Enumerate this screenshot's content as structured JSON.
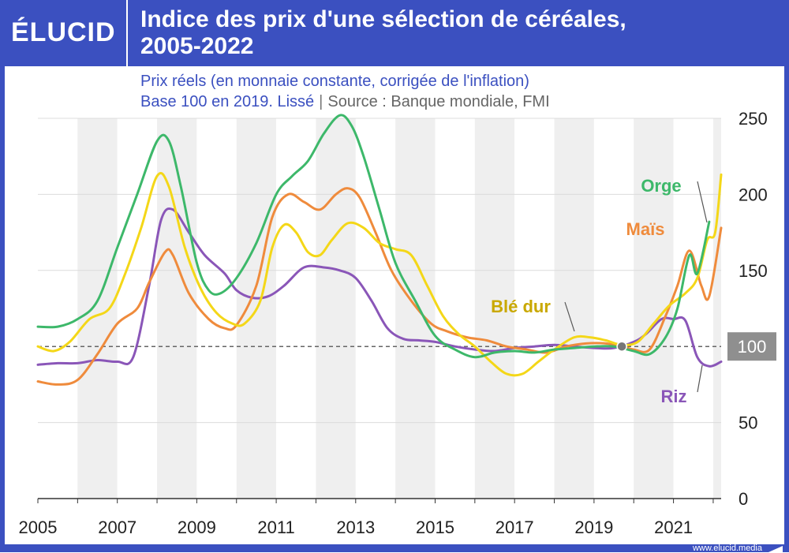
{
  "header": {
    "logo": "ÉLUCID",
    "title_line1": "Indice des prix d'une sélection de céréales,",
    "title_line2": "2005-2022"
  },
  "subtitle": {
    "line1": "Prix réels (en monnaie constante, corrigée de l'inflation)",
    "line2_a": "Base 100 en 2019. Lissé",
    "line2_sep": "|",
    "line2_b": "Source : Banque mondiale, FMI"
  },
  "footer": {
    "url": "www.elucid.media"
  },
  "colors": {
    "brand": "#3b50c0",
    "orge": "#3db86a",
    "mais": "#ef8b3c",
    "ble_dur": "#f4d718",
    "riz": "#8a56b8",
    "band": "#efefef"
  },
  "chart_data": {
    "type": "line",
    "ylim": [
      0,
      250
    ],
    "y_ticks": [
      0,
      50,
      100,
      150,
      200,
      250
    ],
    "x_range": [
      2005,
      2022.2
    ],
    "x_ticks": [
      "2005",
      "2007",
      "2009",
      "2011",
      "2013",
      "2015",
      "2017",
      "2019",
      "2021"
    ],
    "reference": {
      "value": 100,
      "label": "100"
    },
    "series": [
      {
        "name": "Orge",
        "color": "#3db86a",
        "points": [
          [
            2005,
            113
          ],
          [
            2005.5,
            113
          ],
          [
            2006,
            118
          ],
          [
            2006.5,
            130
          ],
          [
            2007,
            165
          ],
          [
            2007.5,
            200
          ],
          [
            2008,
            235
          ],
          [
            2008.3,
            235
          ],
          [
            2008.6,
            205
          ],
          [
            2009,
            155
          ],
          [
            2009.3,
            137
          ],
          [
            2009.6,
            135
          ],
          [
            2010,
            145
          ],
          [
            2010.5,
            168
          ],
          [
            2011,
            200
          ],
          [
            2011.4,
            212
          ],
          [
            2011.8,
            222
          ],
          [
            2012.2,
            240
          ],
          [
            2012.6,
            252
          ],
          [
            2012.9,
            245
          ],
          [
            2013.2,
            225
          ],
          [
            2013.6,
            190
          ],
          [
            2014,
            155
          ],
          [
            2014.5,
            130
          ],
          [
            2015,
            107
          ],
          [
            2015.5,
            98
          ],
          [
            2016,
            93
          ],
          [
            2016.5,
            96
          ],
          [
            2017,
            97
          ],
          [
            2017.5,
            96
          ],
          [
            2018,
            98
          ],
          [
            2018.5,
            99
          ],
          [
            2019,
            100
          ],
          [
            2019.5,
            100
          ],
          [
            2020,
            97
          ],
          [
            2020.4,
            95
          ],
          [
            2020.8,
            106
          ],
          [
            2021.1,
            125
          ],
          [
            2021.4,
            160
          ],
          [
            2021.6,
            148
          ],
          [
            2021.9,
            182
          ]
        ]
      },
      {
        "name": "Maïs",
        "color": "#ef8b3c",
        "points": [
          [
            2005,
            77
          ],
          [
            2005.5,
            75
          ],
          [
            2006,
            78
          ],
          [
            2006.5,
            95
          ],
          [
            2007,
            115
          ],
          [
            2007.5,
            125
          ],
          [
            2007.8,
            142
          ],
          [
            2008.2,
            162
          ],
          [
            2008.4,
            160
          ],
          [
            2008.8,
            135
          ],
          [
            2009.3,
            118
          ],
          [
            2009.7,
            112
          ],
          [
            2010,
            114
          ],
          [
            2010.5,
            140
          ],
          [
            2010.9,
            185
          ],
          [
            2011.3,
            200
          ],
          [
            2011.7,
            195
          ],
          [
            2012.1,
            190
          ],
          [
            2012.5,
            200
          ],
          [
            2012.8,
            204
          ],
          [
            2013.1,
            198
          ],
          [
            2013.5,
            175
          ],
          [
            2013.9,
            150
          ],
          [
            2014.4,
            130
          ],
          [
            2014.9,
            115
          ],
          [
            2015.3,
            110
          ],
          [
            2015.8,
            106
          ],
          [
            2016.3,
            104
          ],
          [
            2016.8,
            100
          ],
          [
            2017.3,
            98
          ],
          [
            2017.8,
            96
          ],
          [
            2018.3,
            100
          ],
          [
            2018.8,
            102
          ],
          [
            2019.3,
            102
          ],
          [
            2019.7,
            100
          ],
          [
            2020,
            98
          ],
          [
            2020.4,
            98
          ],
          [
            2020.8,
            120
          ],
          [
            2021.1,
            140
          ],
          [
            2021.4,
            163
          ],
          [
            2021.7,
            140
          ],
          [
            2021.9,
            133
          ],
          [
            2022.2,
            178
          ]
        ]
      },
      {
        "name": "Blé dur",
        "color": "#f4d718",
        "points": [
          [
            2005,
            100
          ],
          [
            2005.4,
            97
          ],
          [
            2005.8,
            103
          ],
          [
            2006.3,
            118
          ],
          [
            2006.8,
            125
          ],
          [
            2007.2,
            148
          ],
          [
            2007.6,
            178
          ],
          [
            2008,
            212
          ],
          [
            2008.3,
            205
          ],
          [
            2008.7,
            165
          ],
          [
            2009.1,
            138
          ],
          [
            2009.5,
            122
          ],
          [
            2009.9,
            115
          ],
          [
            2010.2,
            115
          ],
          [
            2010.6,
            130
          ],
          [
            2010.9,
            165
          ],
          [
            2011.2,
            180
          ],
          [
            2011.5,
            175
          ],
          [
            2011.8,
            162
          ],
          [
            2012.1,
            160
          ],
          [
            2012.4,
            170
          ],
          [
            2012.8,
            181
          ],
          [
            2013.2,
            178
          ],
          [
            2013.6,
            168
          ],
          [
            2014,
            164
          ],
          [
            2014.4,
            160
          ],
          [
            2014.8,
            140
          ],
          [
            2015.2,
            120
          ],
          [
            2015.6,
            108
          ],
          [
            2016,
            100
          ],
          [
            2016.4,
            90
          ],
          [
            2016.8,
            82
          ],
          [
            2017.2,
            82
          ],
          [
            2017.6,
            90
          ],
          [
            2018,
            98
          ],
          [
            2018.5,
            106
          ],
          [
            2018.9,
            106
          ],
          [
            2019.3,
            104
          ],
          [
            2019.7,
            101
          ],
          [
            2020.1,
            103
          ],
          [
            2020.5,
            115
          ],
          [
            2020.9,
            127
          ],
          [
            2021.3,
            135
          ],
          [
            2021.6,
            145
          ],
          [
            2021.85,
            170
          ],
          [
            2022.05,
            175
          ],
          [
            2022.2,
            213
          ]
        ]
      },
      {
        "name": "Riz",
        "color": "#8a56b8",
        "points": [
          [
            2005,
            88
          ],
          [
            2005.5,
            89
          ],
          [
            2006,
            89
          ],
          [
            2006.5,
            91
          ],
          [
            2007,
            90
          ],
          [
            2007.4,
            93
          ],
          [
            2007.8,
            140
          ],
          [
            2008.1,
            183
          ],
          [
            2008.4,
            190
          ],
          [
            2008.8,
            175
          ],
          [
            2009.2,
            160
          ],
          [
            2009.7,
            148
          ],
          [
            2010,
            137
          ],
          [
            2010.4,
            132
          ],
          [
            2010.8,
            133
          ],
          [
            2011.2,
            140
          ],
          [
            2011.7,
            152
          ],
          [
            2012.2,
            152
          ],
          [
            2012.6,
            150
          ],
          [
            2013,
            145
          ],
          [
            2013.4,
            130
          ],
          [
            2013.8,
            112
          ],
          [
            2014.2,
            105
          ],
          [
            2014.6,
            104
          ],
          [
            2015,
            103
          ],
          [
            2015.5,
            100
          ],
          [
            2016,
            98
          ],
          [
            2016.5,
            97
          ],
          [
            2017,
            99
          ],
          [
            2017.5,
            100
          ],
          [
            2018,
            101
          ],
          [
            2018.5,
            100
          ],
          [
            2019,
            99
          ],
          [
            2019.5,
            99
          ],
          [
            2020,
            103
          ],
          [
            2020.3,
            108
          ],
          [
            2020.7,
            118
          ],
          [
            2021,
            118
          ],
          [
            2021.3,
            117
          ],
          [
            2021.6,
            93
          ],
          [
            2021.9,
            87
          ],
          [
            2022.2,
            90
          ]
        ]
      }
    ],
    "labels": [
      {
        "text": "Orge",
        "color": "#3db86a"
      },
      {
        "text": "Maïs",
        "color": "#ef8b3c"
      },
      {
        "text": "Blé dur",
        "color": "#c9a800"
      },
      {
        "text": "Riz",
        "color": "#8a56b8"
      }
    ],
    "base_marker": {
      "x": 2019.7,
      "y": 100
    }
  }
}
